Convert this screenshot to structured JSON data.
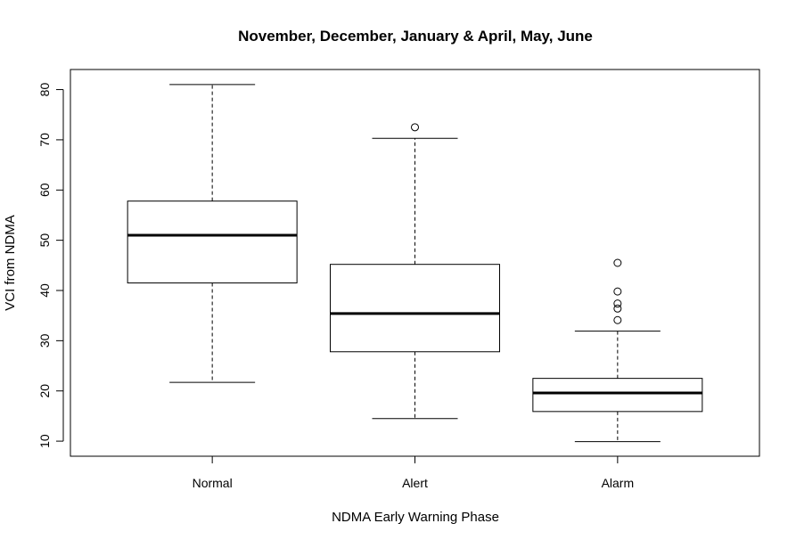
{
  "chart_data": {
    "type": "boxplot",
    "title": "November, December, January & April, May, June",
    "xlabel": "NDMA Early Warning Phase",
    "ylabel": "VCI from NDMA",
    "categories": [
      "Normal",
      "Alert",
      "Alarm"
    ],
    "y_ticks": [
      "10",
      "20",
      "30",
      "40",
      "50",
      "60",
      "70",
      "80"
    ],
    "ylim": [
      7,
      84
    ],
    "grid": false,
    "boxes": [
      {
        "category": "Normal",
        "whisker_low": 21.7,
        "q1": 41.5,
        "median": 51.0,
        "q3": 57.8,
        "whisker_high": 81.0,
        "outliers": []
      },
      {
        "category": "Alert",
        "whisker_low": 14.5,
        "q1": 27.8,
        "median": 35.4,
        "q3": 45.2,
        "whisker_high": 70.3,
        "outliers": [
          72.5
        ]
      },
      {
        "category": "Alarm",
        "whisker_low": 9.9,
        "q1": 15.9,
        "median": 19.6,
        "q3": 22.5,
        "whisker_high": 31.9,
        "outliers": [
          34.1,
          36.4,
          37.4,
          39.8,
          45.5
        ]
      }
    ]
  }
}
